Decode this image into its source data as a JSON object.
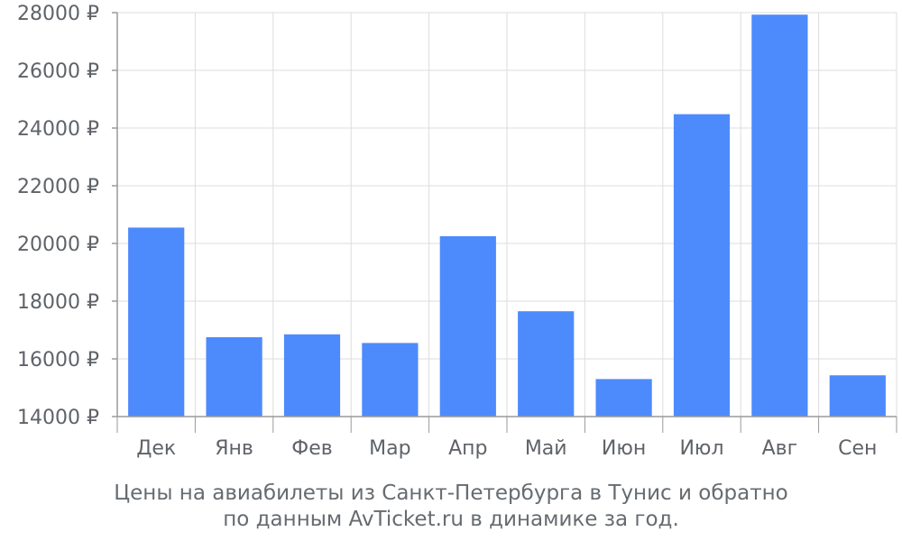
{
  "chart_data": {
    "type": "bar",
    "categories": [
      "Дек",
      "Янв",
      "Фев",
      "Мар",
      "Апр",
      "Май",
      "Июн",
      "Июл",
      "Авг",
      "Сен"
    ],
    "values": [
      20550,
      16750,
      16850,
      16550,
      20250,
      17650,
      15300,
      24480,
      27930,
      15430
    ],
    "ylim": [
      14000,
      28000
    ],
    "yticks": [
      "14000 ₽",
      "16000 ₽",
      "18000 ₽",
      "20000 ₽",
      "22000 ₽",
      "24000 ₽",
      "26000 ₽",
      "28000 ₽"
    ],
    "ytick_values": [
      14000,
      16000,
      18000,
      20000,
      22000,
      24000,
      26000,
      28000
    ],
    "grid": true,
    "bar_color": "#4d8afc",
    "caption": [
      "Цены на авиабилеты из Санкт-Петербурга в Тунис и обратно",
      "по данным AvTicket.ru в динамике за год."
    ]
  }
}
